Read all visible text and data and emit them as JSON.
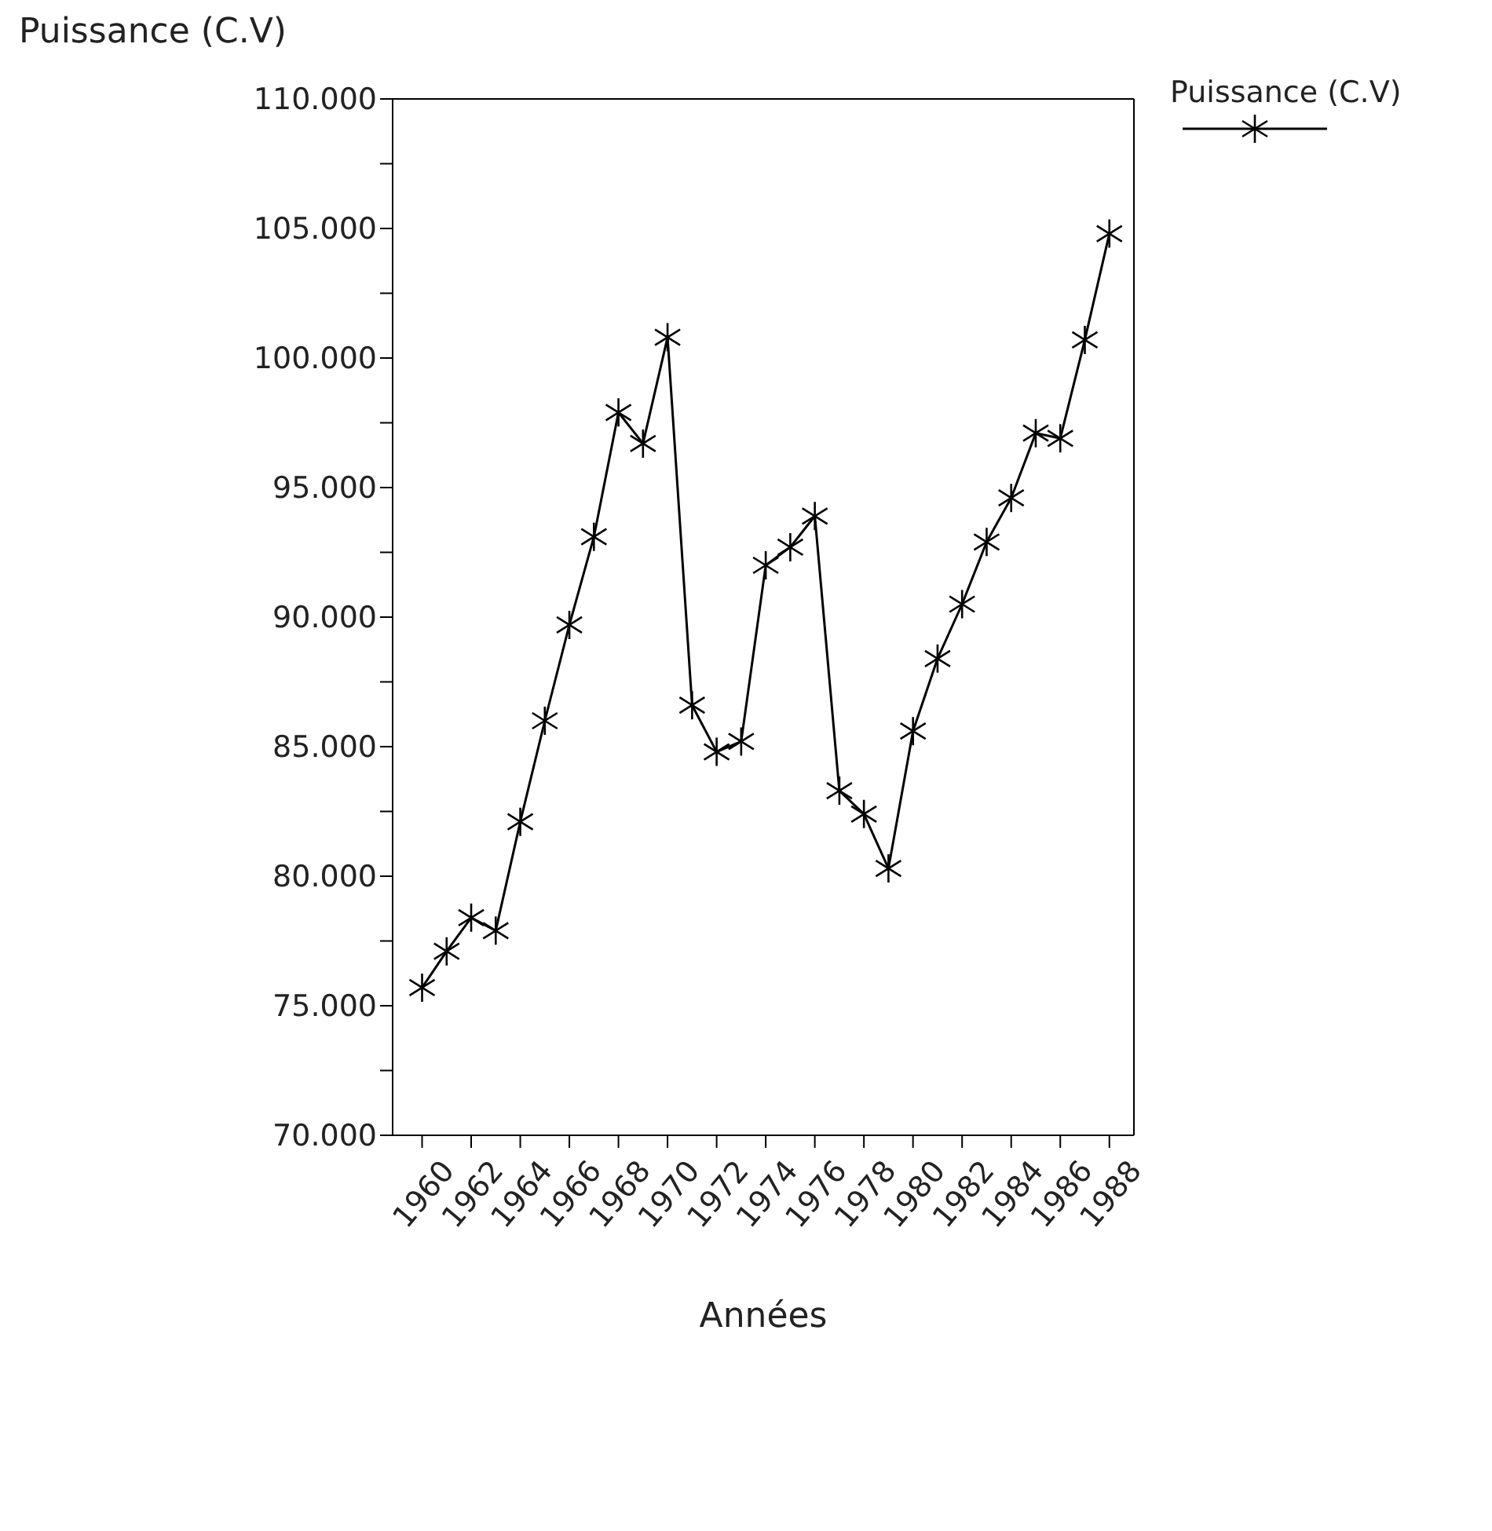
{
  "chart_data": {
    "type": "line",
    "xlabel": "Années",
    "ylabel": "Puissance (C.V)",
    "x": [
      1960,
      1961,
      1962,
      1963,
      1964,
      1965,
      1966,
      1967,
      1968,
      1969,
      1970,
      1971,
      1972,
      1973,
      1974,
      1975,
      1976,
      1977,
      1978,
      1979,
      1980,
      1981,
      1982,
      1983,
      1984,
      1985,
      1986,
      1987,
      1988
    ],
    "series": [
      {
        "name": "Puissance (C.V)",
        "color": "#000000",
        "values": [
          75700,
          77100,
          78400,
          77900,
          82100,
          86000,
          89700,
          93100,
          97900,
          96700,
          100800,
          86600,
          84800,
          85200,
          92000,
          92700,
          93900,
          83300,
          82400,
          80300,
          85600,
          88400,
          90500,
          92900,
          94600,
          97100,
          96900,
          100700,
          104800
        ]
      }
    ],
    "xlim": [
      1958.8,
      1989
    ],
    "xticks": [
      1960,
      1962,
      1964,
      1966,
      1968,
      1970,
      1972,
      1974,
      1976,
      1978,
      1980,
      1982,
      1984,
      1986,
      1988
    ],
    "ylim": [
      70000,
      110000
    ],
    "yticks": [
      {
        "value": 70000,
        "label": "70.000"
      },
      {
        "value": 72500,
        "label": null
      },
      {
        "value": 75000,
        "label": "75.000"
      },
      {
        "value": 77500,
        "label": null
      },
      {
        "value": 80000,
        "label": "80.000"
      },
      {
        "value": 82500,
        "label": null
      },
      {
        "value": 85000,
        "label": "85.000"
      },
      {
        "value": 87500,
        "label": null
      },
      {
        "value": 90000,
        "label": "90.000"
      },
      {
        "value": 92500,
        "label": null
      },
      {
        "value": 95000,
        "label": "95.000"
      },
      {
        "value": 97500,
        "label": null
      },
      {
        "value": 100000,
        "label": "100.000"
      },
      {
        "value": 102500,
        "label": null
      },
      {
        "value": 105000,
        "label": "105.000"
      },
      {
        "value": 107500,
        "label": null
      },
      {
        "value": 110000,
        "label": "110.000"
      }
    ],
    "legend": "top right",
    "marker": "cross",
    "line_style": "solid"
  }
}
